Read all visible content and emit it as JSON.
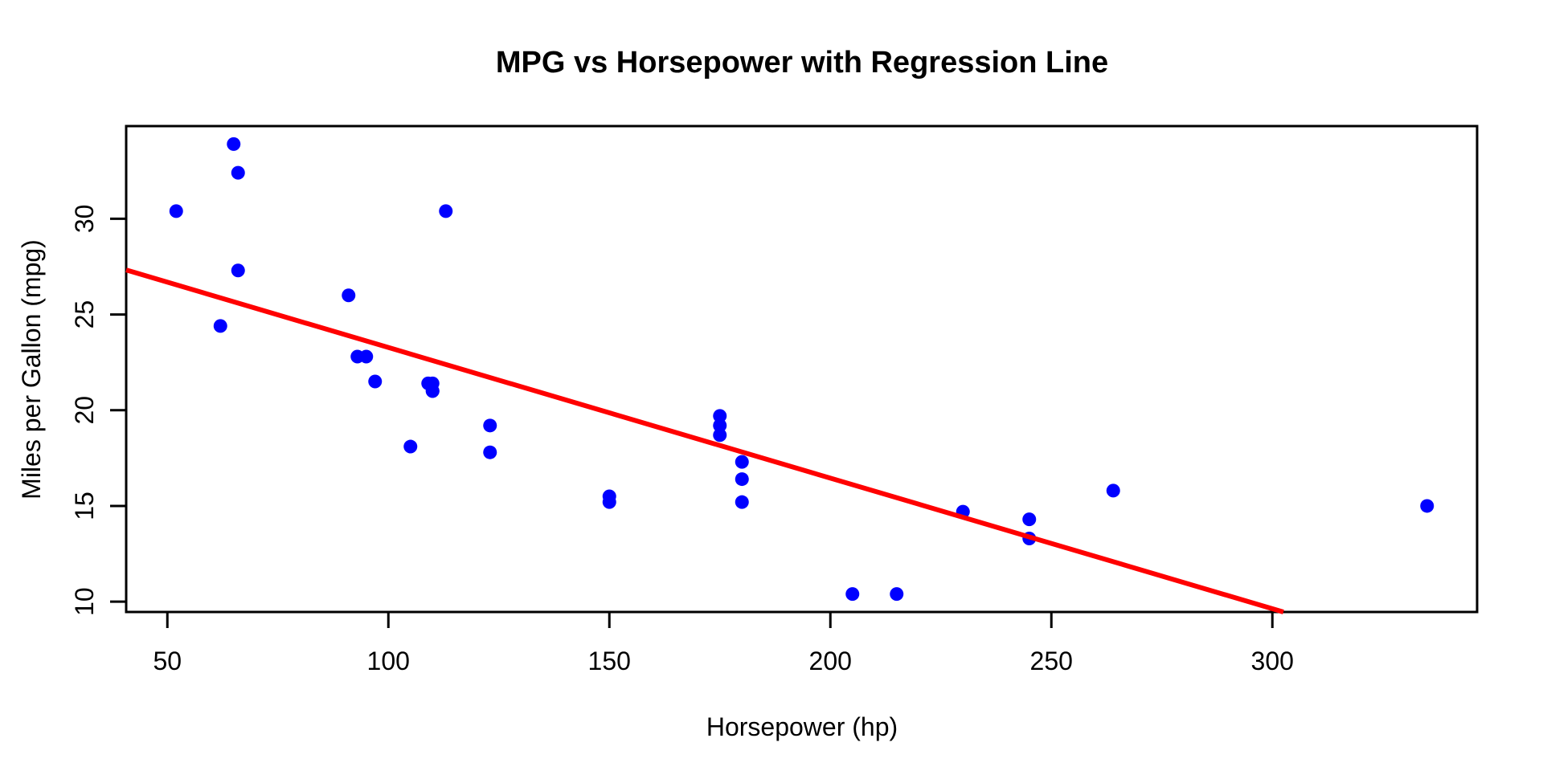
{
  "chart_data": {
    "type": "scatter",
    "title": "MPG vs Horsepower with Regression Line",
    "xlabel": "Horsepower (hp)",
    "ylabel": "Miles per Gallon (mpg)",
    "x_ticks": [
      50,
      100,
      150,
      200,
      250,
      300
    ],
    "y_ticks": [
      10,
      15,
      20,
      25,
      30
    ],
    "xlim": [
      40.68,
      346.32
    ],
    "ylim": [
      9.46,
      34.84
    ],
    "grid": false,
    "legend": "none",
    "background": "#ffffff",
    "axis_color": "#000000",
    "point_color": "#0000ff",
    "line_color": "#ff0000",
    "points": [
      [
        110,
        21.0
      ],
      [
        110,
        21.0
      ],
      [
        93,
        22.8
      ],
      [
        110,
        21.4
      ],
      [
        175,
        18.7
      ],
      [
        105,
        18.1
      ],
      [
        245,
        14.3
      ],
      [
        62,
        24.4
      ],
      [
        95,
        22.8
      ],
      [
        123,
        19.2
      ],
      [
        123,
        17.8
      ],
      [
        180,
        16.4
      ],
      [
        180,
        17.3
      ],
      [
        180,
        15.2
      ],
      [
        205,
        10.4
      ],
      [
        215,
        10.4
      ],
      [
        230,
        14.7
      ],
      [
        66,
        32.4
      ],
      [
        52,
        30.4
      ],
      [
        65,
        33.9
      ],
      [
        97,
        21.5
      ],
      [
        150,
        15.5
      ],
      [
        150,
        15.2
      ],
      [
        245,
        13.3
      ],
      [
        175,
        19.2
      ],
      [
        66,
        27.3
      ],
      [
        91,
        26.0
      ],
      [
        113,
        30.4
      ],
      [
        264,
        15.8
      ],
      [
        175,
        19.7
      ],
      [
        335,
        15.0
      ],
      [
        109,
        21.4
      ]
    ],
    "regression_line": {
      "intercept": 30.0989,
      "slope": -0.06823
    }
  }
}
